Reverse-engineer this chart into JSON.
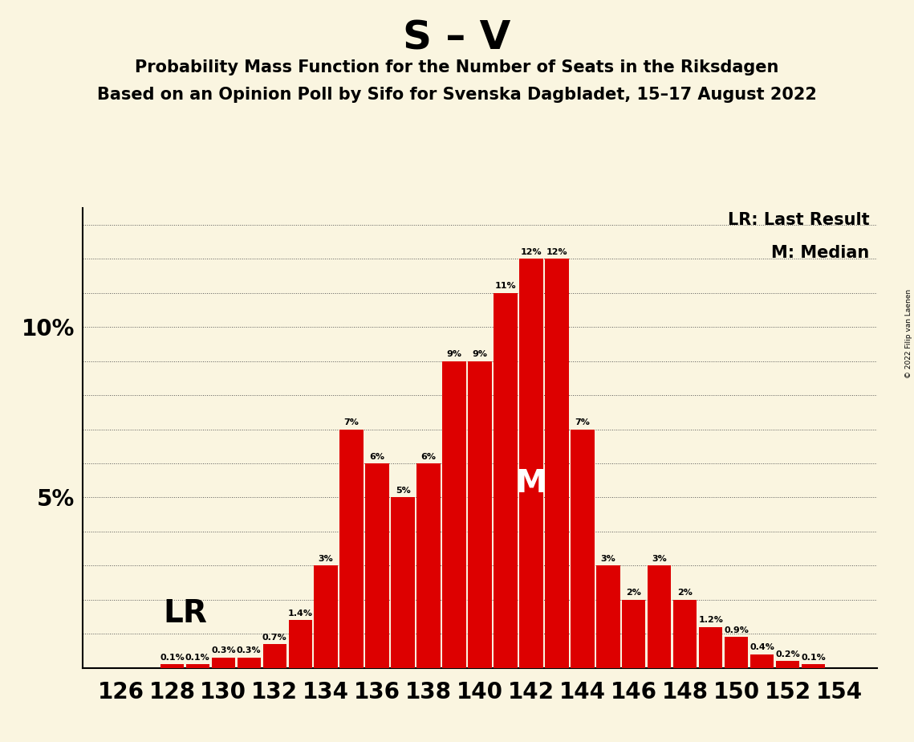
{
  "title": "S – V",
  "subtitle1": "Probability Mass Function for the Number of Seats in the Riksdagen",
  "subtitle2": "Based on an Opinion Poll by Sifo for Svenska Dagbladet, 15–17 August 2022",
  "copyright": "© 2022 Filip van Laenen",
  "seats": [
    126,
    127,
    128,
    129,
    130,
    131,
    132,
    133,
    134,
    135,
    136,
    137,
    138,
    139,
    140,
    141,
    142,
    143,
    144,
    145,
    146,
    147,
    148,
    149,
    150,
    151,
    152,
    153,
    154
  ],
  "values": [
    0.0,
    0.0,
    0.1,
    0.1,
    0.3,
    0.3,
    0.7,
    1.4,
    3.0,
    7.0,
    6.0,
    5.0,
    6.0,
    9.0,
    9.0,
    11.0,
    12.0,
    12.0,
    7.0,
    3.0,
    2.0,
    3.0,
    2.0,
    1.2,
    0.9,
    0.4,
    0.2,
    0.1,
    0.0
  ],
  "bar_color": "#dd0000",
  "background_color": "#faf5e0",
  "text_color": "#000000",
  "lr_seat": 132,
  "median_seat": 142,
  "lr_label": "LR",
  "median_label": "M",
  "lr_legend": "LR: Last Result",
  "median_legend": "M: Median",
  "ytick_positions": [
    0,
    1,
    2,
    3,
    4,
    5,
    6,
    7,
    8,
    9,
    10,
    11,
    12,
    13
  ],
  "ytick_labels": [
    "",
    "",
    "",
    "",
    "",
    "5%",
    "",
    "",
    "",
    "",
    "10%",
    "",
    "",
    ""
  ],
  "ylim": [
    0,
    13.5
  ],
  "xlabel_ticks": [
    126,
    128,
    130,
    132,
    134,
    136,
    138,
    140,
    142,
    144,
    146,
    148,
    150,
    152,
    154
  ],
  "bar_width": 0.92
}
